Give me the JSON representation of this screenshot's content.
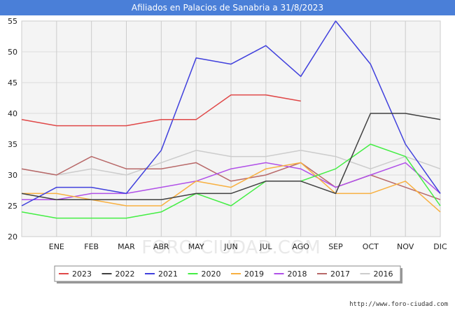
{
  "title": "Afiliados en Palacios de Sanabria a 31/8/2023",
  "source": "http://www.foro-ciudad.com",
  "watermark": "FORO-CIUDAD.COM",
  "chart_data": {
    "type": "line",
    "categories": [
      "",
      "ENE",
      "FEB",
      "MAR",
      "ABR",
      "MAY",
      "JUN",
      "JUL",
      "AGO",
      "SEP",
      "OCT",
      "NOV",
      "DIC"
    ],
    "ylim": [
      20,
      55
    ],
    "yticks": [
      20,
      25,
      30,
      35,
      40,
      45,
      50,
      55
    ],
    "grid": true,
    "legend_position": "bottom",
    "series": [
      {
        "name": "2023",
        "color": "#e04848",
        "values": [
          39,
          38,
          38,
          38,
          39,
          39,
          43,
          43,
          42,
          null,
          null,
          null,
          null
        ]
      },
      {
        "name": "2022",
        "color": "#404040",
        "values": [
          27,
          26,
          26,
          26,
          26,
          27,
          27,
          29,
          29,
          27,
          40,
          40,
          39
        ]
      },
      {
        "name": "2021",
        "color": "#4040dd",
        "values": [
          25,
          28,
          28,
          27,
          34,
          49,
          48,
          51,
          46,
          55,
          48,
          35,
          27
        ]
      },
      {
        "name": "2020",
        "color": "#44ee44",
        "values": [
          24,
          23,
          23,
          23,
          24,
          27,
          25,
          29,
          29,
          31,
          35,
          33,
          25
        ]
      },
      {
        "name": "2019",
        "color": "#f8b040",
        "values": [
          27,
          27,
          26,
          25,
          25,
          29,
          28,
          31,
          32,
          27,
          27,
          29,
          24
        ]
      },
      {
        "name": "2018",
        "color": "#b050e8",
        "values": [
          26,
          26,
          27,
          27,
          28,
          29,
          31,
          32,
          31,
          28,
          30,
          32,
          27
        ]
      },
      {
        "name": "2017",
        "color": "#b86868",
        "values": [
          31,
          30,
          33,
          31,
          31,
          32,
          29,
          30,
          32,
          28,
          30,
          28,
          26
        ]
      },
      {
        "name": "2016",
        "color": "#cccccc",
        "values": [
          31,
          30,
          31,
          30,
          32,
          34,
          33,
          33,
          34,
          33,
          31,
          33,
          31
        ]
      }
    ]
  }
}
